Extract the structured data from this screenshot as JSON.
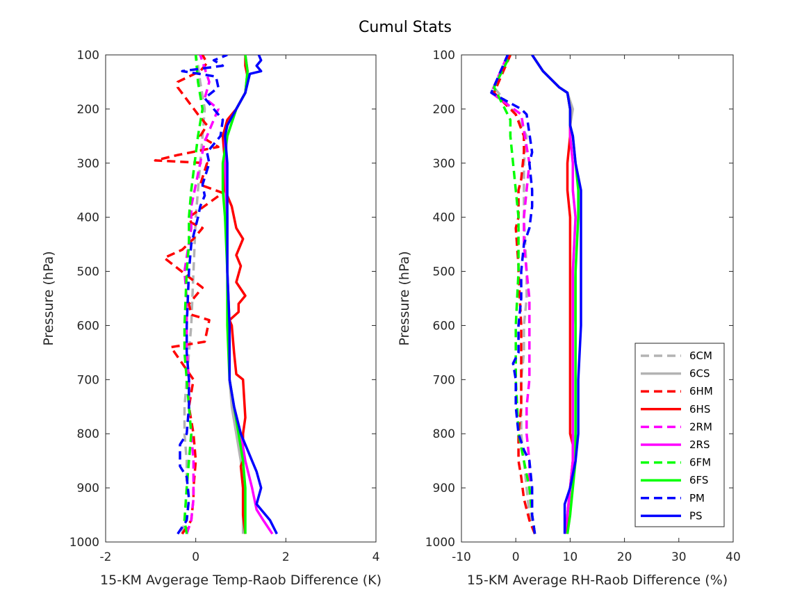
{
  "figure": {
    "title": "Cumul Stats"
  },
  "legend": {
    "placement": "lower-right of right panel",
    "entries": [
      {
        "label": "6CM",
        "color": "#b3b3b3",
        "dashed": true
      },
      {
        "label": "6CS",
        "color": "#b3b3b3",
        "dashed": false
      },
      {
        "label": "6HM",
        "color": "#ff0000",
        "dashed": true
      },
      {
        "label": "6HS",
        "color": "#ff0000",
        "dashed": false
      },
      {
        "label": "2RM",
        "color": "#ff00ff",
        "dashed": true
      },
      {
        "label": "2RS",
        "color": "#ff00ff",
        "dashed": false
      },
      {
        "label": "6FM",
        "color": "#00ff00",
        "dashed": true
      },
      {
        "label": "6FS",
        "color": "#00ff00",
        "dashed": false
      },
      {
        "label": "PM",
        "color": "#0000ff",
        "dashed": true
      },
      {
        "label": "PS",
        "color": "#0000ff",
        "dashed": false
      }
    ]
  },
  "chart_data": [
    {
      "type": "line",
      "xlabel": "15-KM Avgerage Temp-Raob Difference (K)",
      "ylabel": "Pressure (hPa)",
      "xlim": [
        -2,
        4
      ],
      "ylim": [
        100,
        1000
      ],
      "y_reversed": true,
      "xticks": [
        "-2",
        "0",
        "2",
        "4"
      ],
      "yticks": [
        "100",
        "200",
        "300",
        "400",
        "500",
        "600",
        "700",
        "800",
        "900",
        "1000"
      ],
      "grid": false,
      "series": [
        {
          "name": "6CM",
          "color": "#b3b3b3",
          "dashed": true,
          "x": [
            -0.3,
            -0.25,
            -0.2,
            -0.2,
            -0.25,
            -0.25,
            -0.2,
            -0.15,
            -0.1,
            -0.05,
            0,
            0.05,
            0.1,
            0.15,
            0.2,
            0.1,
            0.05,
            0
          ],
          "y": [
            985,
            960,
            900,
            850,
            800,
            750,
            700,
            650,
            600,
            500,
            400,
            350,
            300,
            250,
            200,
            150,
            120,
            100
          ]
        },
        {
          "name": "6CS",
          "color": "#b3b3b3",
          "dashed": false,
          "x": [
            1.05,
            1.05,
            1.05,
            1.0,
            0.9,
            0.8,
            0.75,
            0.75,
            0.7,
            0.7,
            0.65,
            0.65,
            0.7,
            0.9,
            1.1,
            1.15,
            1.1
          ],
          "y": [
            985,
            950,
            900,
            850,
            800,
            750,
            700,
            600,
            500,
            450,
            400,
            300,
            250,
            200,
            170,
            130,
            100
          ]
        },
        {
          "name": "6HM",
          "color": "#ff0000",
          "dashed": true,
          "x": [
            -0.3,
            -0.1,
            -0.05,
            -0.05,
            0,
            -0.05,
            -0.15,
            -0.05,
            -0.55,
            0.2,
            0.3,
            -0.1,
            -0.15,
            0.15,
            -0.7,
            -0.3,
            -0.05,
            0.15,
            -0.1,
            -0.15,
            0.6,
            0.1,
            0.25,
            -0.9,
            -0.4,
            0.5,
            0.1,
            0.25,
            0.05,
            -0.4,
            -0.4,
            0.1,
            0.25,
            0.15,
            0
          ],
          "y": [
            985,
            960,
            920,
            900,
            850,
            800,
            750,
            700,
            640,
            630,
            590,
            580,
            560,
            530,
            475,
            460,
            440,
            420,
            410,
            400,
            355,
            340,
            300,
            295,
            285,
            270,
            250,
            230,
            210,
            160,
            150,
            130,
            115,
            100,
            100
          ]
        },
        {
          "name": "6HS",
          "color": "#ff0000",
          "dashed": false,
          "x": [
            1.1,
            1.05,
            1.05,
            1.0,
            1.05,
            1.05,
            1.1,
            1.05,
            0.9,
            0.85,
            0.8,
            0.75,
            0.95,
            0.95,
            1.1,
            0.9,
            1.0,
            0.9,
            1.05,
            0.9,
            0.8,
            0.65,
            0.65,
            0.6,
            0.7,
            0.9,
            1.1,
            1.15,
            1.1,
            1.1
          ],
          "y": [
            985,
            950,
            900,
            860,
            850,
            800,
            770,
            700,
            690,
            650,
            600,
            590,
            575,
            560,
            545,
            520,
            490,
            470,
            440,
            420,
            380,
            350,
            300,
            250,
            220,
            200,
            170,
            140,
            120,
            100
          ]
        },
        {
          "name": "2RM",
          "color": "#ff00ff",
          "dashed": true,
          "x": [
            -0.2,
            -0.1,
            -0.05,
            -0.05,
            -0.1,
            -0.15,
            -0.15,
            -0.2,
            -0.2,
            -0.2,
            -0.25,
            -0.1,
            -0.1,
            0,
            0.1,
            0.2,
            0.3,
            0.5,
            0.2,
            0.3,
            0.1
          ],
          "y": [
            985,
            960,
            920,
            850,
            800,
            750,
            700,
            650,
            600,
            550,
            500,
            420,
            380,
            340,
            300,
            260,
            240,
            200,
            180,
            150,
            100
          ]
        },
        {
          "name": "2RS",
          "color": "#ff00ff",
          "dashed": false,
          "x": [
            1.7,
            1.5,
            1.35,
            1.25,
            1.1,
            1.0,
            0.85,
            0.75,
            0.75,
            0.7,
            0.7,
            0.65,
            0.65,
            0.7,
            0.9,
            1.1,
            1.15,
            1.1
          ],
          "y": [
            985,
            960,
            940,
            900,
            850,
            800,
            750,
            700,
            600,
            500,
            400,
            300,
            250,
            230,
            200,
            170,
            130,
            100
          ]
        },
        {
          "name": "6FM",
          "color": "#00ff00",
          "dashed": true,
          "x": [
            -0.2,
            -0.25,
            -0.2,
            -0.15,
            -0.1,
            -0.15,
            -0.2,
            -0.25,
            -0.25,
            -0.2,
            -0.15,
            -0.15,
            -0.1,
            0.05,
            0.15,
            0.05,
            0
          ],
          "y": [
            985,
            960,
            900,
            850,
            800,
            750,
            700,
            650,
            600,
            500,
            450,
            400,
            350,
            250,
            200,
            150,
            100
          ]
        },
        {
          "name": "6FS",
          "color": "#00ff00",
          "dashed": false,
          "x": [
            1.1,
            1.1,
            1.1,
            1.05,
            0.95,
            0.85,
            0.75,
            0.7,
            0.7,
            0.65,
            0.6,
            0.6,
            0.7,
            0.9,
            1.1,
            1.15,
            1.1
          ],
          "y": [
            985,
            950,
            900,
            850,
            800,
            750,
            700,
            600,
            500,
            400,
            350,
            300,
            250,
            200,
            170,
            130,
            100
          ]
        },
        {
          "name": "PM",
          "color": "#0000ff",
          "dashed": true,
          "x": [
            -0.4,
            -0.2,
            -0.15,
            -0.2,
            -0.35,
            -0.35,
            -0.2,
            -0.15,
            -0.15,
            -0.2,
            -0.2,
            -0.15,
            -0.1,
            0.05,
            0.1,
            0.2,
            0.15,
            0.3,
            0.25,
            0.55,
            0.6,
            0.3,
            0.2,
            0.5,
            0.45,
            -0.3,
            0.6,
            0.4,
            0.7,
            0.7
          ],
          "y": [
            985,
            960,
            920,
            880,
            860,
            820,
            800,
            750,
            700,
            650,
            600,
            500,
            450,
            400,
            380,
            360,
            340,
            300,
            280,
            250,
            220,
            190,
            180,
            160,
            140,
            130,
            120,
            110,
            100,
            100
          ]
        },
        {
          "name": "PS",
          "color": "#0000ff",
          "dashed": false,
          "x": [
            1.8,
            1.65,
            1.35,
            1.45,
            1.35,
            1.25,
            1.1,
            1.0,
            0.85,
            0.75,
            0.75,
            0.7,
            0.7,
            0.7,
            0.65,
            0.7,
            0.9,
            1.1,
            1.2,
            1.45,
            1.35,
            1.45,
            1.4,
            1.4
          ],
          "y": [
            985,
            960,
            930,
            900,
            870,
            850,
            820,
            800,
            750,
            700,
            600,
            500,
            400,
            300,
            250,
            230,
            200,
            170,
            135,
            130,
            120,
            110,
            100,
            100
          ]
        }
      ]
    },
    {
      "type": "line",
      "xlabel": "15-KM Average RH-Raob Difference (%)",
      "ylabel": "Pressure (hPa)",
      "xlim": [
        -10,
        40
      ],
      "ylim": [
        100,
        1000
      ],
      "y_reversed": true,
      "xticks": [
        "-10",
        "0",
        "10",
        "20",
        "30",
        "40"
      ],
      "yticks": [
        "100",
        "200",
        "300",
        "400",
        "500",
        "600",
        "700",
        "800",
        "900",
        "1000"
      ],
      "grid": false,
      "series": [
        {
          "name": "6CM",
          "color": "#b3b3b3",
          "dashed": true,
          "x": [
            3.5,
            2.5,
            2,
            1.5,
            1,
            1,
            1.5,
            1.5,
            2,
            2,
            1.5,
            1.5,
            1.5,
            2,
            0,
            -4,
            -1
          ],
          "y": [
            985,
            950,
            900,
            850,
            800,
            700,
            650,
            600,
            550,
            500,
            400,
            350,
            300,
            250,
            210,
            160,
            100
          ]
        },
        {
          "name": "6CS",
          "color": "#b3b3b3",
          "dashed": false,
          "x": [
            9.5,
            10,
            10,
            10.5,
            11,
            11,
            11,
            10.5,
            11,
            10.5,
            10.5,
            10,
            10,
            10.5,
            9.5,
            8,
            5,
            3
          ],
          "y": [
            985,
            950,
            900,
            850,
            800,
            700,
            600,
            500,
            400,
            350,
            300,
            250,
            230,
            200,
            170,
            160,
            130,
            100
          ]
        },
        {
          "name": "6HM",
          "color": "#ff0000",
          "dashed": true,
          "x": [
            3.5,
            2.5,
            1.5,
            1,
            0.5,
            0.5,
            1,
            1,
            1,
            0.5,
            0.5,
            0,
            0.5,
            0.5,
            1,
            1.5,
            1.5,
            0,
            -4,
            -1
          ],
          "y": [
            985,
            960,
            920,
            880,
            850,
            800,
            750,
            700,
            600,
            500,
            490,
            420,
            400,
            350,
            330,
            280,
            250,
            210,
            170,
            100
          ]
        },
        {
          "name": "6HS",
          "color": "#ff0000",
          "dashed": false,
          "x": [
            9.5,
            9.5,
            10,
            10.5,
            10.5,
            10,
            10,
            10,
            10,
            10,
            10,
            9.5,
            9.5,
            10,
            10,
            10,
            9.5,
            8,
            5,
            3
          ],
          "y": [
            985,
            950,
            900,
            850,
            820,
            800,
            700,
            600,
            500,
            450,
            400,
            350,
            300,
            250,
            230,
            200,
            170,
            160,
            130,
            100
          ]
        },
        {
          "name": "2RM",
          "color": "#ff00ff",
          "dashed": true,
          "x": [
            3.5,
            3,
            2.5,
            2.5,
            2,
            2,
            2.5,
            2.5,
            2.5,
            2,
            1.5,
            1.5,
            2,
            2.5,
            1,
            -4.5,
            -1.5
          ],
          "y": [
            985,
            950,
            900,
            850,
            800,
            750,
            700,
            600,
            550,
            500,
            450,
            400,
            350,
            300,
            210,
            170,
            100
          ]
        },
        {
          "name": "2RS",
          "color": "#ff00ff",
          "dashed": false,
          "x": [
            9,
            9.5,
            10,
            10.5,
            10.5,
            10.5,
            10.5,
            10.5,
            11,
            10.5,
            10.5,
            10,
            10,
            10,
            9.5,
            8,
            5,
            3
          ],
          "y": [
            985,
            950,
            900,
            850,
            800,
            700,
            600,
            500,
            400,
            350,
            300,
            250,
            230,
            200,
            170,
            160,
            130,
            100
          ]
        },
        {
          "name": "6FM",
          "color": "#00ff00",
          "dashed": true,
          "x": [
            3.5,
            3,
            2.5,
            1.5,
            0.5,
            0,
            0,
            0.5,
            0.5,
            0.5,
            0,
            -0.5,
            -1,
            -1,
            -2,
            -4,
            -1
          ],
          "y": [
            985,
            950,
            900,
            850,
            800,
            700,
            600,
            500,
            450,
            400,
            350,
            300,
            250,
            220,
            200,
            160,
            100
          ]
        },
        {
          "name": "6FS",
          "color": "#00ff00",
          "dashed": false,
          "x": [
            9.5,
            10,
            10.5,
            11,
            11,
            11,
            11,
            11,
            11.5,
            11.5,
            11,
            10.5,
            10,
            10,
            9.5,
            8,
            5,
            3
          ],
          "y": [
            985,
            950,
            900,
            850,
            800,
            700,
            600,
            500,
            400,
            350,
            300,
            250,
            230,
            200,
            170,
            160,
            130,
            100
          ]
        },
        {
          "name": "PM",
          "color": "#0000ff",
          "dashed": true,
          "x": [
            3.5,
            3,
            3,
            2.5,
            1.5,
            0.5,
            0,
            0,
            -0.5,
            0.5,
            0.5,
            1,
            1,
            1.5,
            2.5,
            3,
            3,
            2.5,
            3,
            2,
            1,
            -4.5,
            -1.5
          ],
          "y": [
            985,
            950,
            900,
            850,
            830,
            800,
            750,
            700,
            670,
            650,
            600,
            550,
            500,
            450,
            420,
            380,
            350,
            300,
            280,
            210,
            200,
            170,
            100
          ]
        },
        {
          "name": "PS",
          "color": "#0000ff",
          "dashed": false,
          "x": [
            9,
            9,
            9,
            10,
            11,
            11.5,
            11.5,
            11.5,
            12,
            12,
            12,
            12,
            12,
            11,
            10.5,
            10,
            10,
            9.5,
            8,
            5,
            3
          ],
          "y": [
            985,
            950,
            930,
            900,
            850,
            800,
            750,
            700,
            600,
            500,
            450,
            400,
            350,
            300,
            250,
            230,
            200,
            170,
            160,
            130,
            100
          ]
        }
      ]
    }
  ]
}
